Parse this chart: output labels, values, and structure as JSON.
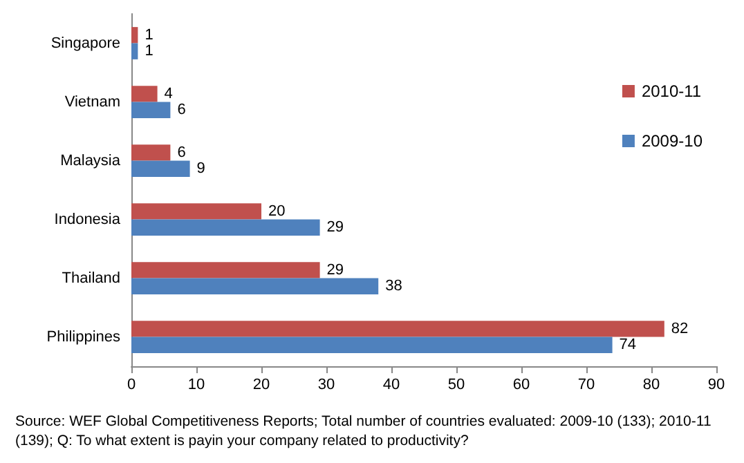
{
  "chart_data": {
    "type": "bar",
    "orientation": "horizontal",
    "categories": [
      "Singapore",
      "Vietnam",
      "Malaysia",
      "Indonesia",
      "Thailand",
      "Philippines"
    ],
    "series": [
      {
        "name": "2010-11",
        "color": "#c0504d",
        "values": [
          1,
          4,
          6,
          20,
          29,
          82
        ]
      },
      {
        "name": "2009-10",
        "color": "#4f81bd",
        "values": [
          1,
          6,
          9,
          29,
          38,
          74
        ]
      }
    ],
    "xlim": [
      0,
      90
    ],
    "xticks": [
      0,
      10,
      20,
      30,
      40,
      50,
      60,
      70,
      80,
      90
    ],
    "grid": false,
    "legend": "top right",
    "data_labels": true,
    "annotations": [
      "Source: WEF Global Competitiveness Reports; Total number of countries evaluated: 2009-10 (133); 2010-11 (139); Q: To what extent is payin your company related to productivity?"
    ]
  }
}
